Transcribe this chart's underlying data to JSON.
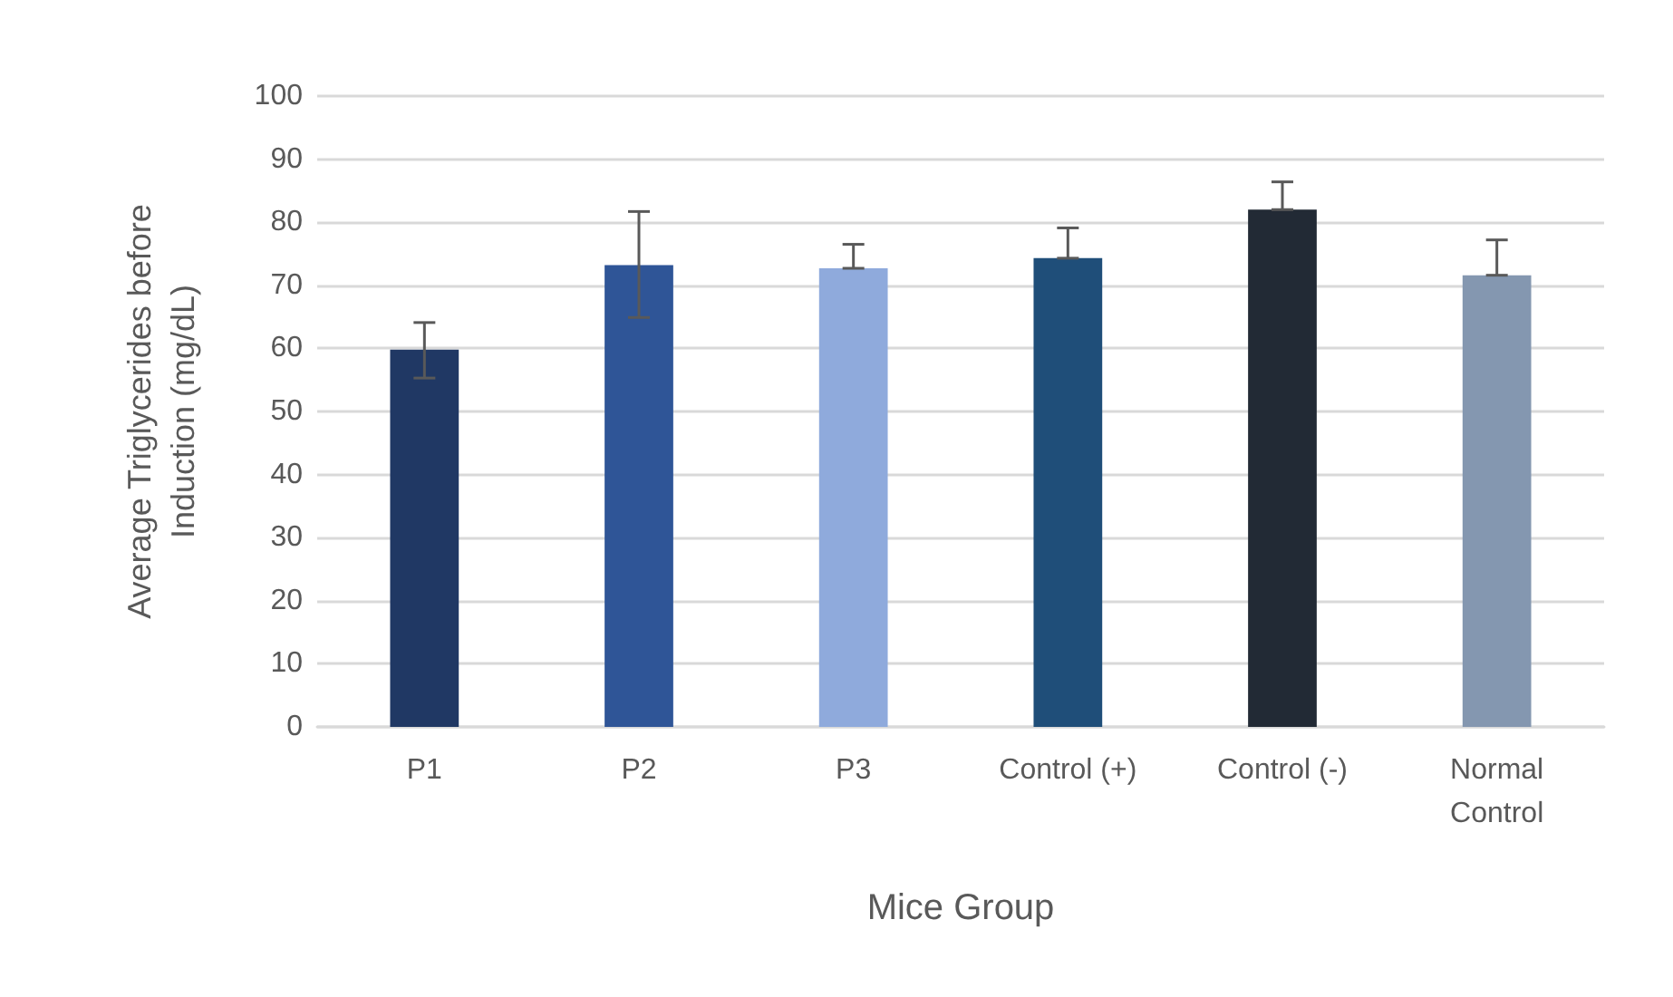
{
  "chart_data": {
    "type": "bar",
    "xlabel": "Mice Group",
    "ylabel": "Average Triglycerides before\nInduction (mg/dL)",
    "categories": [
      "P1",
      "P2",
      "P3",
      "Control (+)",
      "Control (-)",
      "Normal\nControl"
    ],
    "values": [
      59.8,
      73.2,
      72.7,
      74.3,
      82.0,
      71.6
    ],
    "colors": [
      "#203864",
      "#2f5597",
      "#8faadc",
      "#1f4e79",
      "#222a35",
      "#8497b0"
    ],
    "errors": [
      [
        55.3,
        64.1
      ],
      [
        64.9,
        81.7
      ],
      [
        72.7,
        76.5
      ],
      [
        74.3,
        79.1
      ],
      [
        82.0,
        86.4
      ],
      [
        71.6,
        77.2
      ]
    ],
    "ylim": [
      0,
      100
    ],
    "yticks": [
      0,
      10,
      20,
      30,
      40,
      50,
      60,
      70,
      80,
      90,
      100
    ],
    "grid": "y"
  }
}
